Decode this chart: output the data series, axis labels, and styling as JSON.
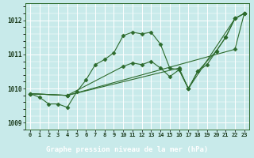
{
  "xlabel_label": "Graphe pression niveau de la mer (hPa)",
  "bg_color": "#c8eaea",
  "line_color": "#2d6b2d",
  "grid_color": "#ffffff",
  "xlabel_bg": "#2d6b2d",
  "xlabel_fg": "#ffffff",
  "xlim": [
    -0.5,
    23.5
  ],
  "ylim": [
    1008.8,
    1012.5
  ],
  "yticks": [
    1009,
    1010,
    1011,
    1012
  ],
  "xticks": [
    0,
    1,
    2,
    3,
    4,
    5,
    6,
    7,
    8,
    9,
    10,
    11,
    12,
    13,
    14,
    15,
    16,
    17,
    18,
    19,
    20,
    21,
    22,
    23
  ],
  "line1_x": [
    0,
    1,
    2,
    3,
    4,
    5,
    6,
    7,
    8,
    9,
    10,
    11,
    12,
    13,
    14,
    15,
    16,
    17,
    18,
    19,
    20,
    21,
    22,
    23
  ],
  "line1_y": [
    1009.85,
    1009.75,
    1009.55,
    1009.55,
    1009.45,
    1009.9,
    1010.25,
    1010.7,
    1010.85,
    1011.05,
    1011.55,
    1011.65,
    1011.6,
    1011.65,
    1011.3,
    1010.6,
    1010.55,
    1010.0,
    1010.5,
    1010.7,
    1011.1,
    1011.5,
    1012.05,
    1012.2
  ],
  "line2_x": [
    0,
    4,
    22,
    23
  ],
  "line2_y": [
    1009.85,
    1009.8,
    1011.15,
    1012.2
  ],
  "line3_x": [
    0,
    4,
    16,
    17,
    18,
    20,
    21,
    22,
    23
  ],
  "line3_y": [
    1009.85,
    1009.8,
    1010.6,
    1010.0,
    1010.5,
    1011.1,
    1011.5,
    1012.05,
    1012.2
  ],
  "line4_x": [
    0,
    4,
    10,
    11,
    12,
    13,
    14,
    15,
    16,
    17,
    22,
    23
  ],
  "line4_y": [
    1009.85,
    1009.8,
    1010.65,
    1010.75,
    1010.7,
    1010.8,
    1010.6,
    1010.35,
    1010.55,
    1010.0,
    1012.05,
    1012.2
  ]
}
